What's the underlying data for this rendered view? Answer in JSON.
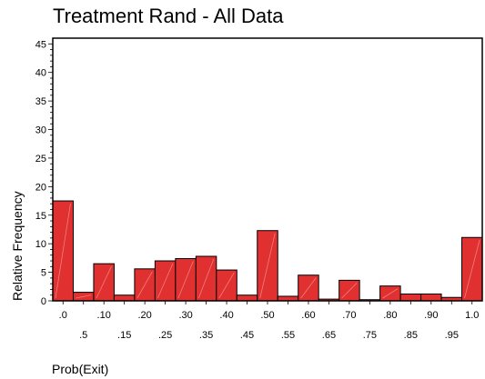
{
  "chart_data": {
    "type": "bar",
    "title": "Treatment Rand - All Data",
    "xlabel": "Prob(Exit)",
    "ylabel": "Relative Frequency",
    "ylim": [
      0,
      46
    ],
    "yticks": [
      0,
      5,
      10,
      15,
      20,
      25,
      30,
      35,
      40,
      45
    ],
    "categories": [
      ".0",
      ".5",
      ".10",
      ".15",
      ".20",
      ".25",
      ".30",
      ".35",
      ".40",
      ".45",
      ".50",
      ".55",
      ".60",
      ".65",
      ".70",
      ".75",
      ".80",
      ".85",
      ".90",
      ".95",
      "1.0"
    ],
    "values": [
      17.5,
      1.5,
      6.5,
      1.0,
      5.6,
      7.0,
      7.4,
      7.8,
      5.4,
      1.0,
      12.3,
      0.8,
      4.5,
      0.3,
      3.6,
      0.2,
      2.6,
      1.2,
      1.2,
      0.6,
      11.1
    ],
    "bar_color": "#e03030",
    "grid": false
  }
}
